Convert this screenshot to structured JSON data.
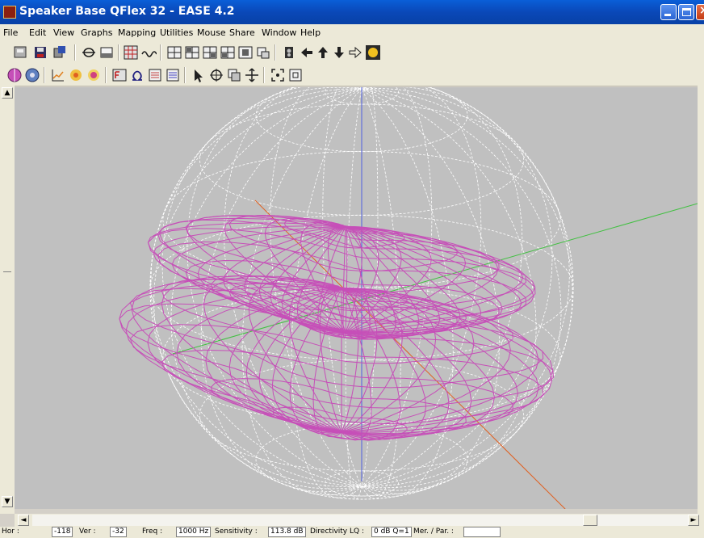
{
  "window": {
    "title": "Speaker Base QFlex 32 - EASE 4.2",
    "controls": {
      "minimize": "minimize",
      "maximize": "maximize",
      "close": "×"
    }
  },
  "menu": [
    "File",
    "Edit",
    "View",
    "Graphs",
    "Mapping",
    "Utilities",
    "Mouse",
    "Share",
    "Window",
    "Help"
  ],
  "toolbar1": [
    "load-icon",
    "save-icon",
    "export-icon",
    "rotate-icon",
    "print-icon",
    "grid-icon",
    "wave-icon",
    "view-a-icon",
    "view-b-icon",
    "view-c-icon",
    "view-d-icon",
    "view-e-icon",
    "view-f-icon",
    "speaker-icon",
    "arrow-left-icon",
    "arrow-up-icon",
    "arrow-down-icon",
    "arrow-right-icon",
    "sun-icon"
  ],
  "toolbar2": [
    "balloon-icon",
    "sphere-icon",
    "chart-icon",
    "target-icon",
    "target2-icon",
    "freq-icon",
    "omega-icon",
    "doc-icon",
    "doc2-icon",
    "pointer-icon",
    "crosshair-icon",
    "layers-icon",
    "move-icon",
    "zoom-fit-icon",
    "zoom-box-icon"
  ],
  "status": {
    "hor_label": "Hor :",
    "hor_value": "-118",
    "ver_label": "Ver :",
    "ver_value": "-32",
    "freq_label": "Freq :",
    "freq_value": "1000 Hz",
    "sens_label": "Sensitivity :",
    "sens_value": "113.8 dB",
    "dir_label": "Directivity LQ :",
    "dir_value": "0 dB Q=1",
    "mer_label": "Mer. / Par. :",
    "mer_value": ""
  },
  "colors": {
    "balloon": "#c64fb8",
    "sphere": "#ffffff",
    "axis_x": "#40c040",
    "axis_y": "#5060e0",
    "axis_z": "#e06020",
    "background": "#c0c0c0"
  },
  "scroll_position": 0.85
}
